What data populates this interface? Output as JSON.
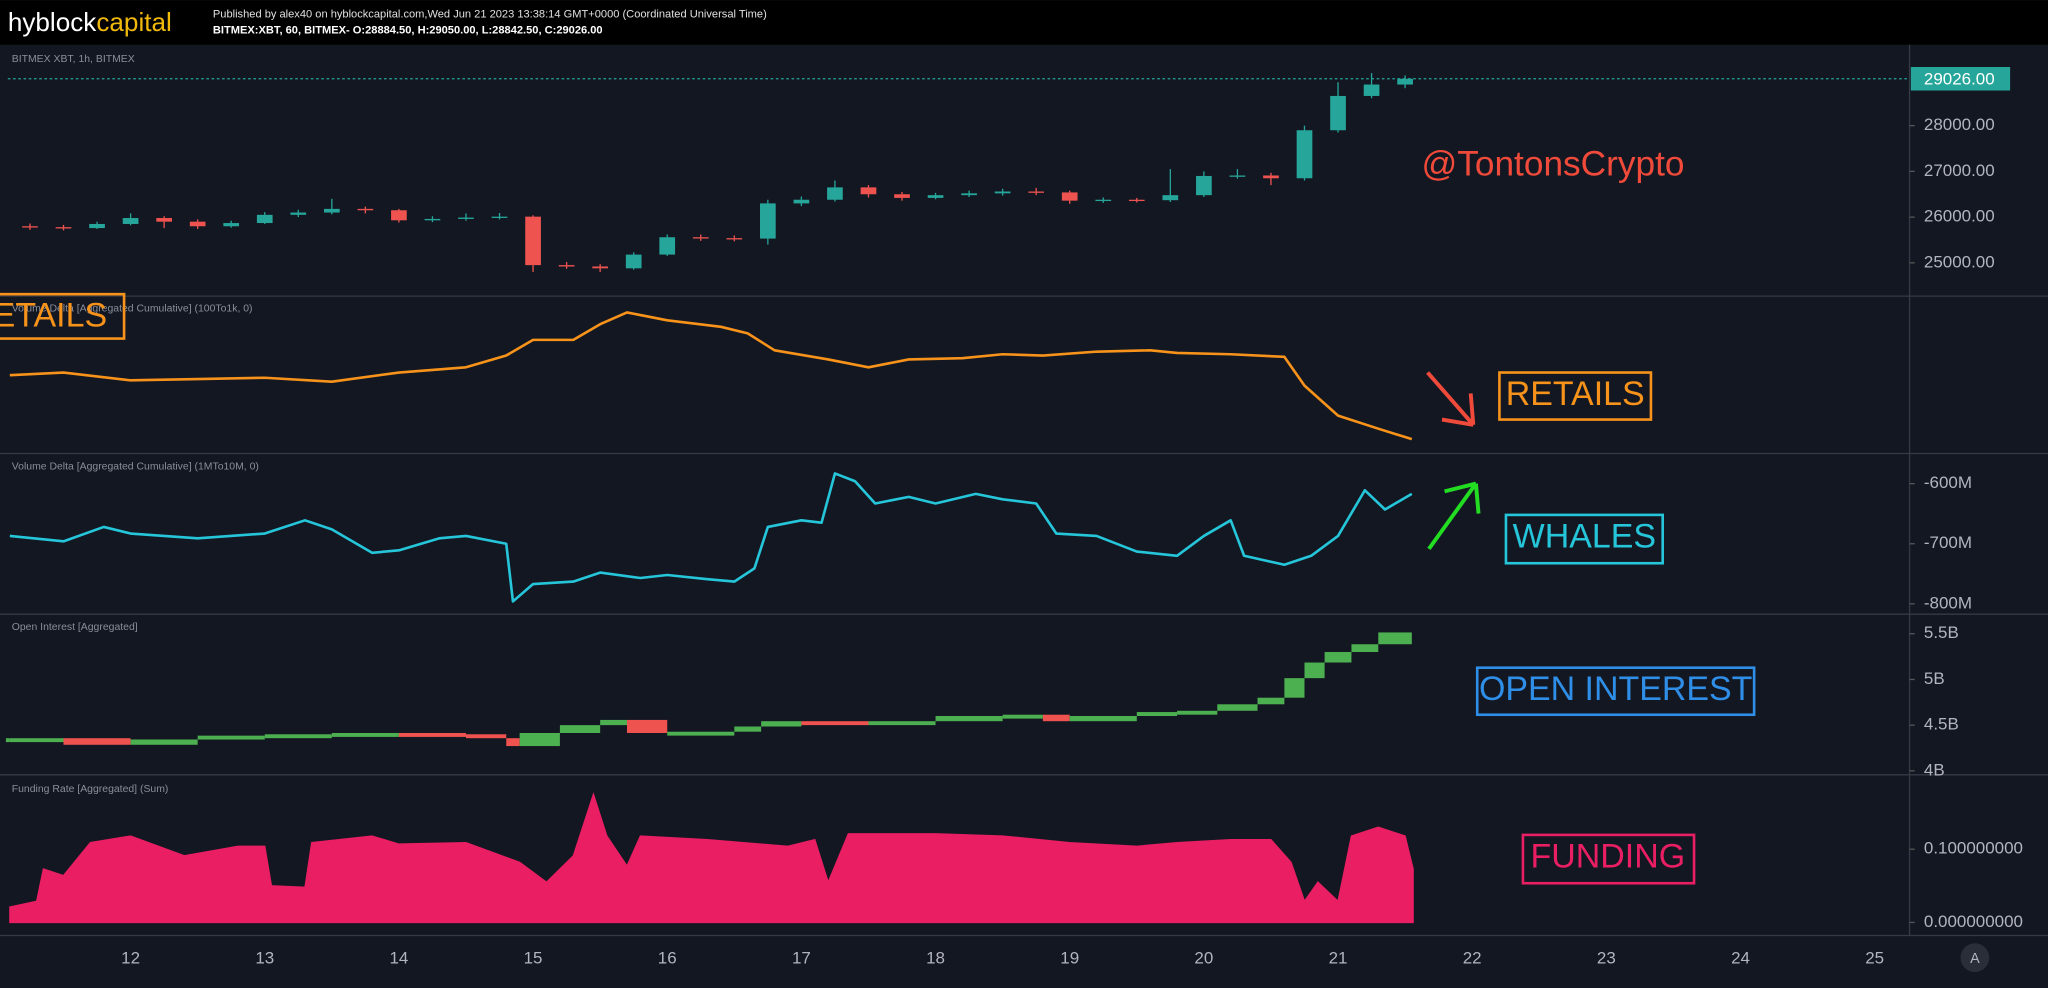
{
  "header": {
    "logo": {
      "part1": "hyblock",
      "part2": "capital"
    },
    "published": "Published by alex40 on hyblockcapital.com,Wed Jun 21 2023 13:38:14 GMT+0000 (Coordinated Universal Time)",
    "symbol_line": "BITMEX:XBT, 60, BITMEX- O:28884.50, H:29050.00, L:28842.50, C:29026.00"
  },
  "chart_data": [
    {
      "type": "candlestick",
      "title": "BITMEX XBT, 1h, BITMEX",
      "annotation": "@TontonsCrypto",
      "annotation_color": "#f04a3a",
      "up_color": "#26a69a",
      "down_color": "#ef5350",
      "x": [
        11.25,
        11.5,
        11.75,
        12,
        12.25,
        12.5,
        12.75,
        13,
        13.25,
        13.5,
        13.75,
        14,
        14.25,
        14.5,
        14.75,
        15,
        15.25,
        15.5,
        15.75,
        16,
        16.25,
        16.5,
        16.75,
        17,
        17.25,
        17.5,
        17.75,
        18,
        18.25,
        18.5,
        18.75,
        19,
        19.25,
        19.5,
        19.75,
        20,
        20.25,
        20.5,
        20.75,
        21,
        21.25,
        21.5
      ],
      "open": [
        25800,
        25780,
        25760,
        25850,
        25980,
        25900,
        25800,
        25870,
        26050,
        26100,
        26180,
        26150,
        25930,
        25960,
        25990,
        26010,
        24950,
        24920,
        24880,
        25180,
        25560,
        25540,
        25530,
        26300,
        26380,
        26650,
        26500,
        26420,
        26480,
        26520,
        26560,
        26540,
        26360,
        26380,
        26370,
        26480,
        26900,
        26910,
        26850,
        27900,
        28650,
        28900
      ],
      "high": [
        25860,
        25830,
        25900,
        26080,
        26020,
        25950,
        25920,
        26110,
        26160,
        26400,
        26230,
        26180,
        26020,
        26080,
        26090,
        26040,
        25020,
        24970,
        25230,
        25620,
        25620,
        25600,
        26380,
        26450,
        26800,
        26700,
        26550,
        26530,
        26580,
        26620,
        26640,
        26580,
        26430,
        26420,
        27050,
        27000,
        27050,
        26970,
        28000,
        28950,
        29150,
        29100
      ],
      "low": [
        25720,
        25710,
        25740,
        25820,
        25760,
        25740,
        25770,
        25850,
        26000,
        26060,
        26080,
        25880,
        25890,
        25920,
        25950,
        24800,
        24870,
        24800,
        24850,
        25150,
        25480,
        25470,
        25400,
        26240,
        26340,
        26430,
        26360,
        26390,
        26440,
        26470,
        26480,
        26290,
        26310,
        26320,
        26330,
        26440,
        26840,
        26700,
        26800,
        27850,
        28600,
        28820
      ],
      "close": [
        25780,
        25760,
        25850,
        25980,
        25900,
        25800,
        25870,
        26050,
        26100,
        26180,
        26150,
        25930,
        25960,
        25990,
        26010,
        24950,
        24920,
        24880,
        25180,
        25560,
        25540,
        25530,
        26300,
        26380,
        26650,
        26500,
        26420,
        26480,
        26520,
        26560,
        26540,
        26360,
        26380,
        26370,
        26480,
        26900,
        26910,
        26850,
        27900,
        28650,
        28900,
        29026
      ],
      "last_price": {
        "value": 29026,
        "label": "29026.00"
      },
      "last_price_color": "#26a69a",
      "xlim": [
        11.085,
        25.26
      ],
      "ylim": [
        24286,
        29714
      ],
      "yticks": [
        {
          "value": 25000,
          "label": "25000.00"
        },
        {
          "value": 26000,
          "label": "26000.00"
        },
        {
          "value": 27000,
          "label": "27000.00"
        },
        {
          "value": 28000,
          "label": "28000.00"
        }
      ]
    },
    {
      "type": "line",
      "title": "Volume Delta [Aggregated Cumulative] (100To1k, 0)",
      "annotation": "RETAILS",
      "annotation_color": "#f7931a",
      "color": "#f7931a",
      "x": [
        11.1,
        11.5,
        12,
        12.5,
        13,
        13.5,
        14,
        14.5,
        14.8,
        15,
        15.3,
        15.5,
        15.7,
        16,
        16.4,
        16.6,
        16.8,
        17.2,
        17.5,
        17.8,
        18.2,
        18.5,
        18.8,
        19.2,
        19.6,
        19.8,
        20.2,
        20.6,
        20.75,
        21,
        21.3,
        21.55
      ],
      "values": [
        59,
        61,
        55,
        56,
        57,
        54,
        61,
        65,
        74,
        86,
        86,
        98,
        107,
        101,
        96,
        91,
        78,
        71,
        65,
        71,
        72,
        75,
        74,
        77,
        78,
        76,
        75,
        73,
        51,
        28,
        18,
        10
      ],
      "xlim": [
        11.085,
        25.26
      ],
      "ylim": [
        0,
        119
      ]
    },
    {
      "type": "line",
      "title": "Volume Delta [Aggregated Cumulative] (1MTo10M, 0)",
      "annotation": "WHALES",
      "annotation_color": "#26c6da",
      "color": "#26c6da",
      "x": [
        11.1,
        11.5,
        11.8,
        12,
        12.5,
        13,
        13.3,
        13.5,
        13.8,
        14,
        14.3,
        14.5,
        14.8,
        14.85,
        15,
        15.3,
        15.5,
        15.8,
        16,
        16.3,
        16.5,
        16.65,
        16.75,
        17,
        17.15,
        17.25,
        17.4,
        17.55,
        17.8,
        18,
        18.3,
        18.5,
        18.75,
        18.9,
        19.2,
        19.5,
        19.8,
        20,
        20.2,
        20.3,
        20.6,
        20.8,
        21,
        21.2,
        21.35,
        21.55
      ],
      "values": [
        -687000000,
        -696000000,
        -672000000,
        -683000000,
        -691000000,
        -683000000,
        -661000000,
        -676000000,
        -715000000,
        -711000000,
        -691000000,
        -687000000,
        -700000000,
        -796000000,
        -767000000,
        -763000000,
        -748000000,
        -757000000,
        -752000000,
        -759000000,
        -763000000,
        -741000000,
        -672000000,
        -661000000,
        -665000000,
        -583000000,
        -596000000,
        -633000000,
        -622000000,
        -633000000,
        -617000000,
        -626000000,
        -633000000,
        -683000000,
        -687000000,
        -713000000,
        -720000000,
        -687000000,
        -661000000,
        -720000000,
        -735000000,
        -720000000,
        -687000000,
        -611000000,
        -643000000,
        -617000000
      ],
      "xlim": [
        11.085,
        25.26
      ],
      "ylim": [
        -815000000,
        -552000000
      ],
      "yticks": [
        {
          "value": -600000000,
          "label": "-600M"
        },
        {
          "value": -700000000,
          "label": "-700M"
        },
        {
          "value": -800000000,
          "label": "-800M"
        }
      ]
    },
    {
      "type": "step",
      "title": "Open Interest [Aggregated]",
      "annotation": "OPEN INTEREST",
      "annotation_color": "#2f8fe8",
      "up_color": "#4caf50",
      "down_color": "#ef5350",
      "x": [
        11.1,
        11.5,
        12,
        12.5,
        13,
        13.5,
        14,
        14.5,
        14.8,
        14.9,
        15.2,
        15.5,
        15.7,
        16,
        16.5,
        16.7,
        17,
        17.5,
        18,
        18.5,
        18.8,
        19,
        19.5,
        19.8,
        20.1,
        20.4,
        20.6,
        20.75,
        20.9,
        21.1,
        21.3,
        21.55
      ],
      "values": [
        4343000000,
        4343000000,
        4271000000,
        4329000000,
        4371000000,
        4386000000,
        4400000000,
        4386000000,
        4343000000,
        4257000000,
        4400000000,
        4486000000,
        4543000000,
        4400000000,
        4414000000,
        4471000000,
        4529000000,
        4500000000,
        4529000000,
        4586000000,
        4600000000,
        4529000000,
        4586000000,
        4629000000,
        4643000000,
        4714000000,
        4786000000,
        5000000000,
        5171000000,
        5286000000,
        5371000000,
        5500000000
      ],
      "xlim": [
        11.085,
        25.26
      ],
      "ylim": [
        3971000000,
        5700000000
      ],
      "yticks": [
        {
          "value": 5500000000,
          "label": "5.5B"
        },
        {
          "value": 5000000000,
          "label": "5B"
        },
        {
          "value": 4500000000,
          "label": "4.5B"
        },
        {
          "value": 4000000000,
          "label": "4B"
        }
      ]
    },
    {
      "type": "area",
      "title": "Funding Rate [Aggregated] (Sum)",
      "annotation": "FUNDING",
      "annotation_color": "#e91e63",
      "color": "#e91e63",
      "x": [
        11.1,
        11.3,
        11.35,
        11.5,
        11.7,
        12,
        12.4,
        12.8,
        13,
        13.05,
        13.3,
        13.35,
        13.8,
        14,
        14.5,
        14.9,
        15.1,
        15.3,
        15.45,
        15.55,
        15.7,
        15.8,
        16.3,
        16.9,
        17.1,
        17.2,
        17.35,
        18,
        18.5,
        19,
        19.5,
        19.8,
        20.2,
        20.5,
        20.65,
        20.75,
        20.85,
        21,
        21.1,
        21.3,
        21.5,
        21.56
      ],
      "values": [
        0.021,
        0.029,
        0.073,
        0.064,
        0.109,
        0.118,
        0.091,
        0.104,
        0.104,
        0.05,
        0.048,
        0.109,
        0.118,
        0.107,
        0.109,
        0.082,
        0.055,
        0.091,
        0.175,
        0.118,
        0.077,
        0.118,
        0.113,
        0.104,
        0.113,
        0.055,
        0.121,
        0.121,
        0.118,
        0.109,
        0.104,
        0.109,
        0.113,
        0.113,
        0.082,
        0.029,
        0.055,
        0.029,
        0.118,
        0.13,
        0.118,
        0.073
      ],
      "xlim": [
        11.085,
        25.26
      ],
      "ylim": [
        -0.016,
        0.198
      ],
      "yticks": [
        {
          "value": 0.1,
          "label": "0.100000000"
        },
        {
          "value": 0,
          "label": "0.000000000"
        }
      ],
      "xticks": [
        12,
        13,
        14,
        15,
        16,
        17,
        18,
        19,
        20,
        21,
        22,
        23,
        24,
        25
      ]
    }
  ]
}
